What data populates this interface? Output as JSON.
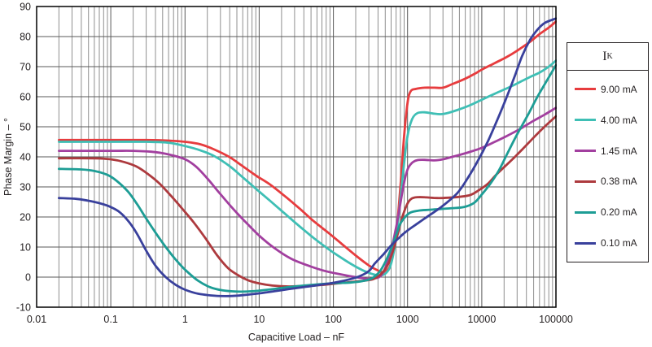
{
  "chart_data": {
    "type": "line",
    "title": "",
    "xlabel": "Capacitive Load – nF",
    "ylabel": "Phase Margin – °",
    "x_scale": "log",
    "xlim": [
      0.01,
      100000
    ],
    "ylim": [
      -10,
      90
    ],
    "grid": true,
    "x_tick_labels": [
      "0.01",
      "0.1",
      "1",
      "10",
      "100",
      "1000",
      "10000",
      "100000"
    ],
    "y_tick_labels": [
      "-10",
      "0",
      "10",
      "20",
      "30",
      "40",
      "50",
      "60",
      "70",
      "80",
      "90"
    ],
    "legend": {
      "title": "I",
      "title_sub": "K",
      "position": "right"
    },
    "series": [
      {
        "name": "9.00 mA",
        "color": "#e73c3e",
        "points": [
          [
            0.02,
            45.6
          ],
          [
            0.1,
            45.6
          ],
          [
            0.3,
            45.6
          ],
          [
            0.6,
            45.4
          ],
          [
            1,
            45
          ],
          [
            1.6,
            44.2
          ],
          [
            2.5,
            42.4
          ],
          [
            4,
            39.9
          ],
          [
            6,
            36.9
          ],
          [
            9,
            33.8
          ],
          [
            14,
            30.8
          ],
          [
            22,
            27
          ],
          [
            35,
            22.8
          ],
          [
            55,
            18.5
          ],
          [
            85,
            14.8
          ],
          [
            130,
            11
          ],
          [
            200,
            7.2
          ],
          [
            300,
            3.9
          ],
          [
            400,
            2.2
          ],
          [
            470,
            1.6
          ],
          [
            540,
            2.5
          ],
          [
            600,
            5
          ],
          [
            700,
            14
          ],
          [
            800,
            30
          ],
          [
            900,
            47
          ],
          [
            1000,
            58
          ],
          [
            1100,
            61.8
          ],
          [
            1300,
            62.6
          ],
          [
            1700,
            63
          ],
          [
            2300,
            63
          ],
          [
            3000,
            63
          ],
          [
            4000,
            64.2
          ],
          [
            6000,
            66
          ],
          [
            8000,
            67.6
          ],
          [
            10000,
            69
          ],
          [
            15000,
            71.2
          ],
          [
            21000,
            73
          ],
          [
            30000,
            75.3
          ],
          [
            45000,
            78.3
          ],
          [
            60000,
            80.8
          ],
          [
            80000,
            83
          ],
          [
            100000,
            85
          ]
        ]
      },
      {
        "name": "4.00 mA",
        "color": "#3fbfb5",
        "points": [
          [
            0.02,
            45
          ],
          [
            0.1,
            45
          ],
          [
            0.3,
            45
          ],
          [
            0.6,
            44.7
          ],
          [
            1,
            43.6
          ],
          [
            1.6,
            42.2
          ],
          [
            2.5,
            40.2
          ],
          [
            4,
            36.9
          ],
          [
            6,
            33.2
          ],
          [
            9,
            29.4
          ],
          [
            14,
            25.4
          ],
          [
            22,
            21.2
          ],
          [
            35,
            16.9
          ],
          [
            55,
            12.9
          ],
          [
            85,
            9.4
          ],
          [
            130,
            6.3
          ],
          [
            200,
            3.5
          ],
          [
            280,
            1.7
          ],
          [
            360,
            0.8
          ],
          [
            440,
            0.6
          ],
          [
            520,
            1.5
          ],
          [
            600,
            4.5
          ],
          [
            700,
            13
          ],
          [
            800,
            26
          ],
          [
            900,
            38
          ],
          [
            1000,
            47
          ],
          [
            1150,
            52.5
          ],
          [
            1350,
            54.5
          ],
          [
            1700,
            54.8
          ],
          [
            2200,
            54.4
          ],
          [
            2800,
            54.2
          ],
          [
            3500,
            54.6
          ],
          [
            5000,
            55.8
          ],
          [
            7000,
            57.2
          ],
          [
            10000,
            59
          ],
          [
            15000,
            61
          ],
          [
            21000,
            62.6
          ],
          [
            30000,
            64.4
          ],
          [
            45000,
            66.6
          ],
          [
            60000,
            68
          ],
          [
            80000,
            70
          ],
          [
            100000,
            72
          ]
        ]
      },
      {
        "name": "1.45 mA",
        "color": "#a23f9f",
        "points": [
          [
            0.02,
            42
          ],
          [
            0.1,
            42
          ],
          [
            0.2,
            42
          ],
          [
            0.35,
            41.7
          ],
          [
            0.6,
            40.8
          ],
          [
            1,
            39.2
          ],
          [
            1.4,
            36.8
          ],
          [
            2,
            32.8
          ],
          [
            3,
            27.6
          ],
          [
            4.5,
            22.6
          ],
          [
            7,
            17.6
          ],
          [
            10,
            13.8
          ],
          [
            16,
            9.7
          ],
          [
            27,
            6.1
          ],
          [
            45,
            3.9
          ],
          [
            75,
            2.1
          ],
          [
            120,
            1
          ],
          [
            200,
            0
          ],
          [
            280,
            -0.5
          ],
          [
            360,
            -0.4
          ],
          [
            430,
            0.3
          ],
          [
            500,
            3
          ],
          [
            600,
            9
          ],
          [
            700,
            16.5
          ],
          [
            800,
            24.5
          ],
          [
            900,
            31.5
          ],
          [
            1000,
            35.8
          ],
          [
            1150,
            38
          ],
          [
            1350,
            38.9
          ],
          [
            1700,
            39
          ],
          [
            2300,
            38.8
          ],
          [
            3000,
            39.2
          ],
          [
            4000,
            40
          ],
          [
            6000,
            41.2
          ],
          [
            10000,
            43
          ],
          [
            15000,
            45
          ],
          [
            22000,
            47
          ],
          [
            33000,
            49.3
          ],
          [
            50000,
            52
          ],
          [
            70000,
            54
          ],
          [
            100000,
            56.3
          ]
        ]
      },
      {
        "name": "0.38 mA",
        "color": "#ad3a3e",
        "points": [
          [
            0.02,
            39.5
          ],
          [
            0.06,
            39.5
          ],
          [
            0.1,
            39.2
          ],
          [
            0.15,
            38.3
          ],
          [
            0.22,
            36.8
          ],
          [
            0.32,
            34.2
          ],
          [
            0.45,
            31.2
          ],
          [
            0.65,
            27
          ],
          [
            0.9,
            23
          ],
          [
            1.3,
            18.3
          ],
          [
            1.9,
            12.8
          ],
          [
            2.7,
            7.3
          ],
          [
            3.8,
            3
          ],
          [
            5,
            0.9
          ],
          [
            7,
            -1
          ],
          [
            10,
            -2.1
          ],
          [
            15,
            -2.8
          ],
          [
            25,
            -3.1
          ],
          [
            45,
            -2.9
          ],
          [
            70,
            -2.6
          ],
          [
            110,
            -2.1
          ],
          [
            180,
            -1.6
          ],
          [
            260,
            -1.2
          ],
          [
            350,
            -0.6
          ],
          [
            450,
            1.3
          ],
          [
            550,
            4.5
          ],
          [
            650,
            9.5
          ],
          [
            750,
            15
          ],
          [
            850,
            20
          ],
          [
            1000,
            24.5
          ],
          [
            1150,
            26.2
          ],
          [
            1400,
            26.6
          ],
          [
            1800,
            26.5
          ],
          [
            2500,
            26.3
          ],
          [
            3500,
            26.4
          ],
          [
            5000,
            26.7
          ],
          [
            7000,
            27.3
          ],
          [
            9000,
            28.8
          ],
          [
            12000,
            31
          ],
          [
            16000,
            34.3
          ],
          [
            25000,
            38.8
          ],
          [
            35000,
            42.4
          ],
          [
            50000,
            46.4
          ],
          [
            70000,
            50
          ],
          [
            100000,
            53.5
          ]
        ]
      },
      {
        "name": "0.20 mA",
        "color": "#1d9d95",
        "points": [
          [
            0.02,
            36
          ],
          [
            0.04,
            35.8
          ],
          [
            0.06,
            35.3
          ],
          [
            0.09,
            34
          ],
          [
            0.12,
            32
          ],
          [
            0.17,
            28.5
          ],
          [
            0.23,
            24
          ],
          [
            0.3,
            19.5
          ],
          [
            0.4,
            14.8
          ],
          [
            0.55,
            10
          ],
          [
            0.75,
            5.8
          ],
          [
            1,
            2.5
          ],
          [
            1.5,
            -1.2
          ],
          [
            2.2,
            -3.4
          ],
          [
            3.2,
            -4.4
          ],
          [
            5,
            -4.8
          ],
          [
            8,
            -4.7
          ],
          [
            13,
            -4.2
          ],
          [
            22,
            -3.5
          ],
          [
            40,
            -2.8
          ],
          [
            70,
            -2.3
          ],
          [
            110,
            -2
          ],
          [
            170,
            -1.8
          ],
          [
            250,
            -1.3
          ],
          [
            330,
            -0.4
          ],
          [
            420,
            1.8
          ],
          [
            500,
            5
          ],
          [
            600,
            9.5
          ],
          [
            700,
            14
          ],
          [
            800,
            17.8
          ],
          [
            950,
            20.3
          ],
          [
            1100,
            21.5
          ],
          [
            1400,
            22.1
          ],
          [
            2000,
            22.4
          ],
          [
            3000,
            22.7
          ],
          [
            4500,
            23
          ],
          [
            6000,
            23.4
          ],
          [
            8000,
            24.8
          ],
          [
            10000,
            27.5
          ],
          [
            13000,
            31
          ],
          [
            17000,
            35.5
          ],
          [
            22000,
            41
          ],
          [
            30000,
            47.5
          ],
          [
            42000,
            54
          ],
          [
            55000,
            59.5
          ],
          [
            70000,
            64
          ],
          [
            100000,
            70.5
          ]
        ]
      },
      {
        "name": "0.10 mA",
        "color": "#39409c",
        "points": [
          [
            0.02,
            26.3
          ],
          [
            0.035,
            26
          ],
          [
            0.055,
            25.2
          ],
          [
            0.08,
            24.2
          ],
          [
            0.1,
            23.3
          ],
          [
            0.13,
            21.7
          ],
          [
            0.17,
            18.8
          ],
          [
            0.22,
            14.8
          ],
          [
            0.3,
            8.8
          ],
          [
            0.4,
            3.8
          ],
          [
            0.55,
            0
          ],
          [
            0.75,
            -2.6
          ],
          [
            1,
            -4.2
          ],
          [
            1.5,
            -5.5
          ],
          [
            2.5,
            -6.2
          ],
          [
            4,
            -6.3
          ],
          [
            6,
            -6
          ],
          [
            10,
            -5.4
          ],
          [
            16,
            -4.7
          ],
          [
            25,
            -4
          ],
          [
            40,
            -3.3
          ],
          [
            65,
            -2.6
          ],
          [
            100,
            -1.9
          ],
          [
            150,
            -1
          ],
          [
            220,
            0.2
          ],
          [
            300,
            2
          ],
          [
            360,
            4.5
          ],
          [
            470,
            7.5
          ],
          [
            600,
            10.5
          ],
          [
            800,
            13.5
          ],
          [
            1000,
            15.5
          ],
          [
            1700,
            19.5
          ],
          [
            2900,
            23.5
          ],
          [
            4700,
            28
          ],
          [
            6500,
            33
          ],
          [
            9000,
            39
          ],
          [
            12000,
            45
          ],
          [
            16000,
            52
          ],
          [
            21000,
            59
          ],
          [
            28000,
            67
          ],
          [
            35000,
            73.5
          ],
          [
            45000,
            79
          ],
          [
            55000,
            82
          ],
          [
            70000,
            84.5
          ],
          [
            100000,
            86
          ]
        ]
      }
    ],
    "colors": {
      "background": "#ffffff",
      "plot_border": "#000000",
      "grid_major": "#595959",
      "grid_minor": "#8f8f8f",
      "text": "#231f20"
    }
  }
}
